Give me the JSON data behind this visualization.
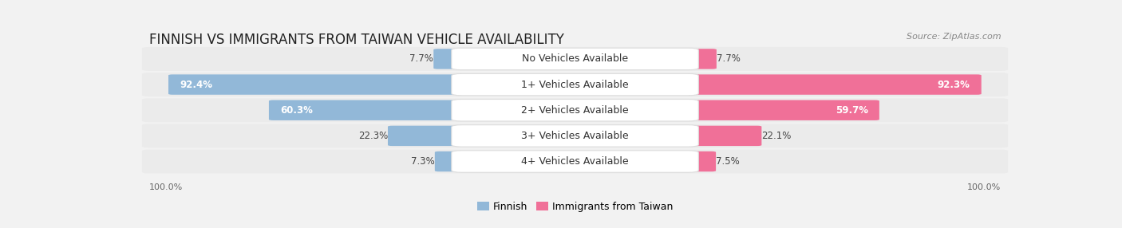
{
  "title": "FINNISH VS IMMIGRANTS FROM TAIWAN VEHICLE AVAILABILITY",
  "source": "Source: ZipAtlas.com",
  "categories": [
    "No Vehicles Available",
    "1+ Vehicles Available",
    "2+ Vehicles Available",
    "3+ Vehicles Available",
    "4+ Vehicles Available"
  ],
  "finnish_values": [
    7.7,
    92.4,
    60.3,
    22.3,
    7.3
  ],
  "taiwan_values": [
    7.7,
    92.3,
    59.7,
    22.1,
    7.5
  ],
  "finnish_color": "#92B8D8",
  "taiwan_color": "#F07098",
  "finnish_bar_light": "#C8DCF0",
  "taiwan_bar_light": "#F8B0C8",
  "bg_color": "#F2F2F2",
  "row_bg": "#EBEBEB",
  "label_bg": "#FFFFFF",
  "max_val": 100.0,
  "title_fontsize": 12,
  "label_fontsize": 9,
  "value_fontsize": 8.5,
  "legend_fontsize": 9,
  "source_fontsize": 8
}
